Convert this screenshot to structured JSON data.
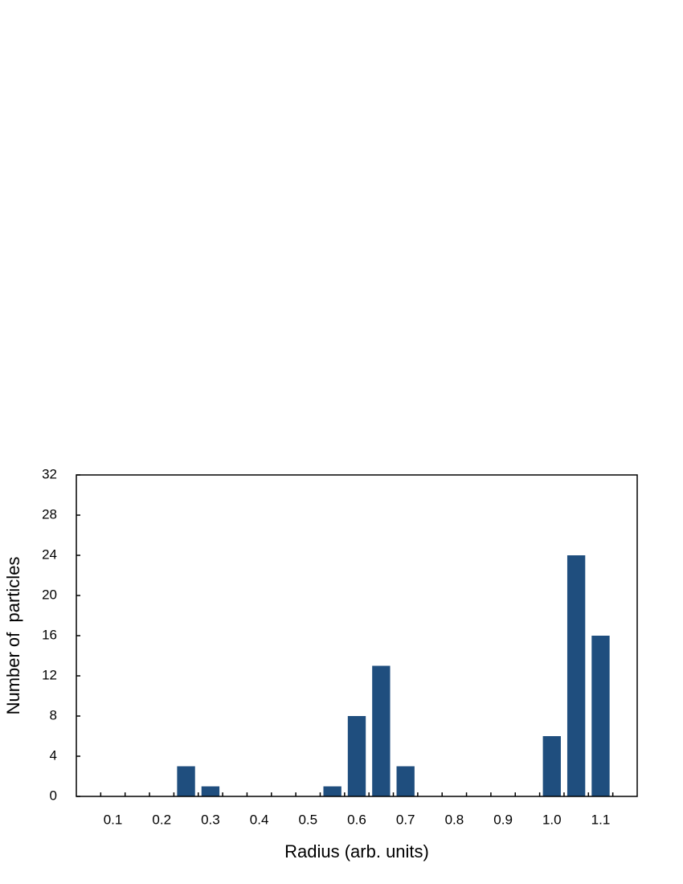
{
  "chart_data": {
    "type": "histogram",
    "xlabel": "Radius (arb. units)",
    "ylabel": "Number of  particles",
    "bins": [
      0.075,
      0.125,
      0.175,
      0.225,
      0.275,
      0.325,
      0.375,
      0.425,
      0.475,
      0.525,
      0.575,
      0.625,
      0.675,
      0.725,
      0.775,
      0.825,
      0.875,
      0.925,
      0.975,
      1.025,
      1.075,
      1.125
    ],
    "values": [
      0,
      0,
      0,
      3,
      1,
      0,
      0,
      0,
      0,
      1,
      8,
      13,
      3,
      0,
      0,
      0,
      0,
      0,
      6,
      24,
      16
    ],
    "color": "#1f4e7e",
    "xlim": [
      0.025,
      1.175
    ],
    "xticks": [
      0.1,
      0.2,
      0.3,
      0.4,
      0.5,
      0.6,
      0.7,
      0.8,
      0.9,
      {
        "value": 1,
        "label": "1.0"
      },
      1.1
    ],
    "ylim": [
      0,
      32
    ],
    "yticks": [
      0,
      4,
      8,
      12,
      16,
      20,
      24,
      28,
      32
    ]
  }
}
